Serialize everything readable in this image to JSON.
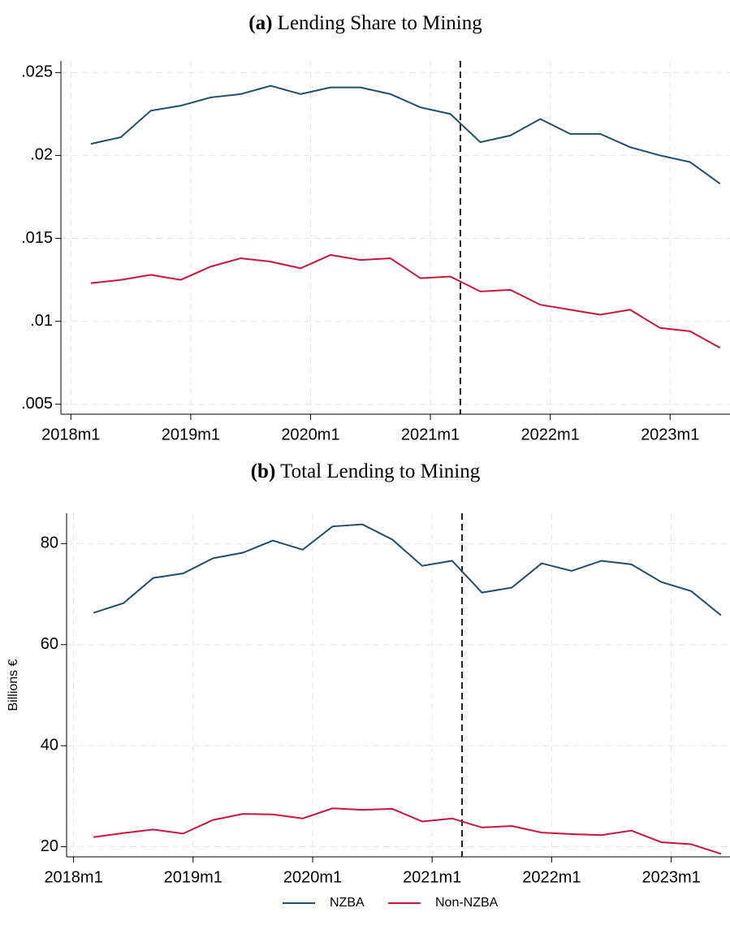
{
  "chart_data": [
    {
      "type": "line",
      "panel": "(a)",
      "title": "Lending Share to Mining",
      "x": [
        698,
        701,
        704,
        707,
        710,
        713,
        716,
        719,
        722,
        725,
        728,
        731,
        734,
        737,
        740,
        743,
        746,
        749,
        752,
        755,
        758,
        761
      ],
      "xlim": [
        695,
        762
      ],
      "xticks": [
        {
          "value": 696,
          "label": "2018m1"
        },
        {
          "value": 708,
          "label": "2019m1"
        },
        {
          "value": 720,
          "label": "2020m1"
        },
        {
          "value": 732,
          "label": "2021m1"
        },
        {
          "value": 744,
          "label": "2022m1"
        },
        {
          "value": 756,
          "label": "2023m1"
        }
      ],
      "ylim": [
        0.0044,
        0.0257
      ],
      "yticks": [
        {
          "value": 0.005,
          "label": ".005"
        },
        {
          "value": 0.01,
          "label": ".01"
        },
        {
          "value": 0.015,
          "label": ".015"
        },
        {
          "value": 0.02,
          "label": ".02"
        },
        {
          "value": 0.025,
          "label": ".025"
        }
      ],
      "grid": true,
      "vline": 735,
      "series": [
        {
          "color": "#1f4e6e",
          "values": [
            0.0207,
            0.0211,
            0.0227,
            0.023,
            0.0235,
            0.0237,
            0.0242,
            0.0237,
            0.0241,
            0.0241,
            0.0237,
            0.0229,
            0.0225,
            0.0208,
            0.0212,
            0.0222,
            0.0213,
            0.0213,
            0.0205,
            0.02,
            0.0196,
            0.0183
          ]
        },
        {
          "color": "#c8163f",
          "values": [
            0.0123,
            0.0125,
            0.0128,
            0.0125,
            0.0133,
            0.0138,
            0.0136,
            0.0132,
            0.014,
            0.0137,
            0.0138,
            0.0126,
            0.0127,
            0.0118,
            0.0119,
            0.011,
            0.0107,
            0.0104,
            0.0107,
            0.0096,
            0.0094,
            0.0084
          ]
        }
      ]
    },
    {
      "type": "line",
      "panel": "(b)",
      "title": "Total Lending to Mining",
      "ylabel": "Billions €",
      "x": [
        698,
        701,
        704,
        707,
        710,
        713,
        716,
        719,
        722,
        725,
        728,
        731,
        734,
        737,
        740,
        743,
        746,
        749,
        752,
        755,
        758,
        761
      ],
      "xlim": [
        695.3,
        761.9
      ],
      "xticks": [
        {
          "value": 696,
          "label": "2018m1"
        },
        {
          "value": 708,
          "label": "2019m1"
        },
        {
          "value": 720,
          "label": "2020m1"
        },
        {
          "value": 732,
          "label": "2021m1"
        },
        {
          "value": 744,
          "label": "2022m1"
        },
        {
          "value": 756,
          "label": "2023m1"
        }
      ],
      "ylim": [
        18,
        86
      ],
      "yticks": [
        20,
        40,
        60,
        80
      ],
      "grid": true,
      "vline": 735,
      "legend": "bottom",
      "series": [
        {
          "name": "NZBA",
          "color": "#1f4e6e",
          "values": [
            66.3,
            68.2,
            73.2,
            74.1,
            77.1,
            78.2,
            80.6,
            78.8,
            83.4,
            83.8,
            80.8,
            75.6,
            76.6,
            70.3,
            71.3,
            76.1,
            74.6,
            76.6,
            75.9,
            72.4,
            70.6,
            65.8
          ]
        },
        {
          "name": "Non-NZBA",
          "color": "#c8163f",
          "values": [
            21.9,
            22.7,
            23.4,
            22.6,
            25.3,
            26.5,
            26.4,
            25.6,
            27.6,
            27.3,
            27.5,
            25.0,
            25.6,
            23.8,
            24.1,
            22.8,
            22.5,
            22.3,
            23.2,
            20.9,
            20.5,
            18.6
          ]
        }
      ]
    }
  ]
}
